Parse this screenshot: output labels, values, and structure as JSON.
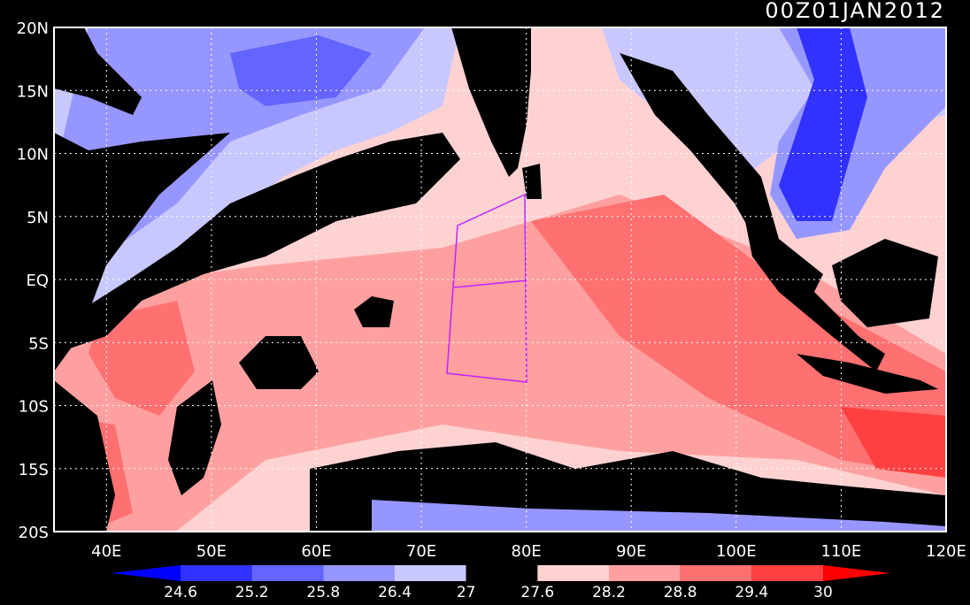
{
  "title": "00Z01JAN2012",
  "lat_labels": [
    "20N",
    "15N",
    "10N",
    "5N",
    "EQ",
    "5S",
    "10S",
    "15S",
    "20S"
  ],
  "lon_labels": [
    "40E",
    "50E",
    "60E",
    "70E",
    "80E",
    "90E",
    "100E",
    "110E",
    "120E"
  ],
  "colorbar": {
    "labels": [
      24.6,
      25.2,
      25.8,
      26.4,
      27,
      27.6,
      28.2,
      28.8,
      29.4,
      30
    ],
    "colors": [
      "#0000ff",
      "#3232ff",
      "#6464ff",
      "#9696ff",
      "#c8c8ff",
      "#000000",
      "#ffd2d2",
      "#ffa0a0",
      "#ff7070",
      "#ff4040",
      "#ff0000"
    ]
  }
}
